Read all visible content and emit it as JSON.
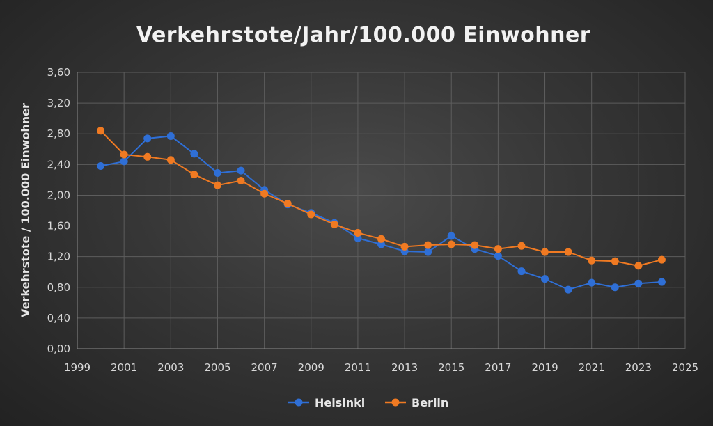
{
  "chart_data": {
    "type": "line",
    "title": "Verkehrstote/Jahr/100.000 Einwohner",
    "xlabel": "",
    "ylabel": "Verkehrstote  / 100.000 Einwohner",
    "xlim": [
      1999,
      2025
    ],
    "ylim": [
      0,
      3.6
    ],
    "x_ticks": [
      1999,
      2001,
      2003,
      2005,
      2007,
      2009,
      2011,
      2013,
      2015,
      2017,
      2019,
      2021,
      2023,
      2025
    ],
    "x_tick_labels": [
      "1999",
      "2001",
      "2003",
      "2005",
      "2007",
      "2009",
      "2011",
      "2013",
      "2015",
      "2017",
      "2019",
      "2021",
      "2023",
      "2025"
    ],
    "y_ticks": [
      0,
      0.4,
      0.8,
      1.2,
      1.6,
      2.0,
      2.4,
      2.8,
      3.2,
      3.6
    ],
    "y_tick_labels": [
      "0,00",
      "0,40",
      "0,80",
      "1,20",
      "1,60",
      "2,00",
      "2,40",
      "2,80",
      "3,20",
      "3,60"
    ],
    "grid": true,
    "legend_position": "bottom",
    "x": [
      2000,
      2001,
      2002,
      2003,
      2004,
      2005,
      2006,
      2007,
      2008,
      2009,
      2010,
      2011,
      2012,
      2013,
      2014,
      2015,
      2016,
      2017,
      2018,
      2019,
      2020,
      2021,
      2022,
      2023,
      2024
    ],
    "series": [
      {
        "name": "Helsinki",
        "color": "#2f6fd6",
        "values": [
          2.38,
          2.44,
          2.74,
          2.77,
          2.54,
          2.29,
          2.32,
          2.07,
          1.88,
          1.77,
          1.64,
          1.44,
          1.36,
          1.27,
          1.26,
          1.47,
          1.3,
          1.21,
          1.01,
          0.91,
          0.77,
          0.86,
          0.8,
          0.85,
          0.87
        ]
      },
      {
        "name": "Berlin",
        "color": "#f07a22",
        "values": [
          2.84,
          2.53,
          2.5,
          2.46,
          2.27,
          2.13,
          2.19,
          2.02,
          1.89,
          1.75,
          1.62,
          1.51,
          1.43,
          1.33,
          1.35,
          1.36,
          1.35,
          1.3,
          1.34,
          1.26,
          1.26,
          1.15,
          1.14,
          1.08,
          1.16
        ]
      }
    ]
  }
}
